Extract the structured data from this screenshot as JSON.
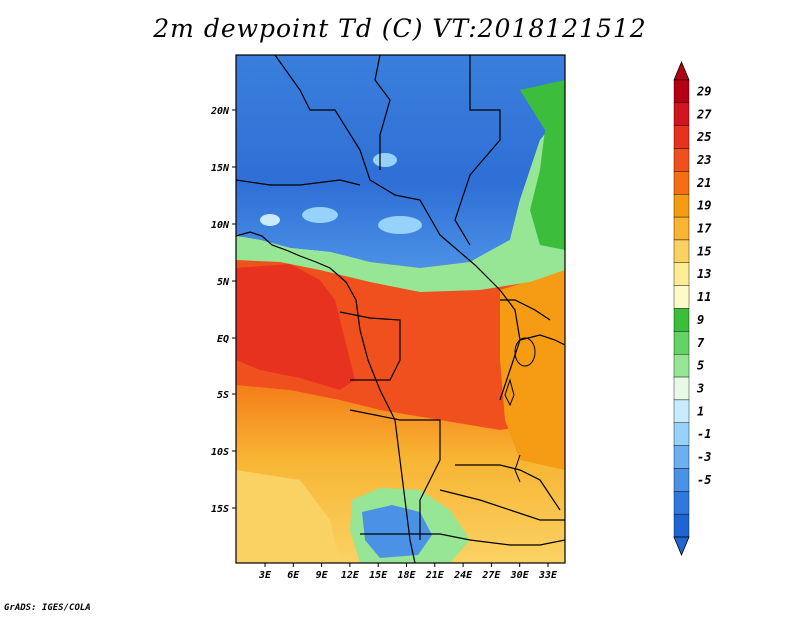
{
  "title": "2m dewpoint Td (C) VT:2018121512",
  "credit": "GrADS: IGES/COLA",
  "map": {
    "variable": "2m dewpoint",
    "units": "C",
    "valid_time": "2018121512",
    "lat_ticks": [
      "20N",
      "15N",
      "10N",
      "5N",
      "EQ",
      "5S",
      "10S",
      "15S"
    ],
    "lon_ticks": [
      "3E",
      "6E",
      "9E",
      "12E",
      "15E",
      "18E",
      "21E",
      "24E",
      "27E",
      "30E",
      "33E"
    ]
  },
  "colorbar": {
    "labels": [
      "29",
      "27",
      "25",
      "23",
      "21",
      "19",
      "17",
      "15",
      "13",
      "11",
      "9",
      "7",
      "5",
      "3",
      "1",
      "-1",
      "-3",
      "-5"
    ],
    "colors": [
      "#b40014",
      "#d2141e",
      "#e6321e",
      "#f0501e",
      "#f46e14",
      "#f59b14",
      "#f8b432",
      "#fad264",
      "#fcec96",
      "#fcfac8",
      "#3cbe3c",
      "#64d264",
      "#96e696",
      "#e6fae6",
      "#c8ebff",
      "#96d2fa",
      "#6eaff0",
      "#4b91e6",
      "#3278dc",
      "#1e64d2"
    ]
  }
}
